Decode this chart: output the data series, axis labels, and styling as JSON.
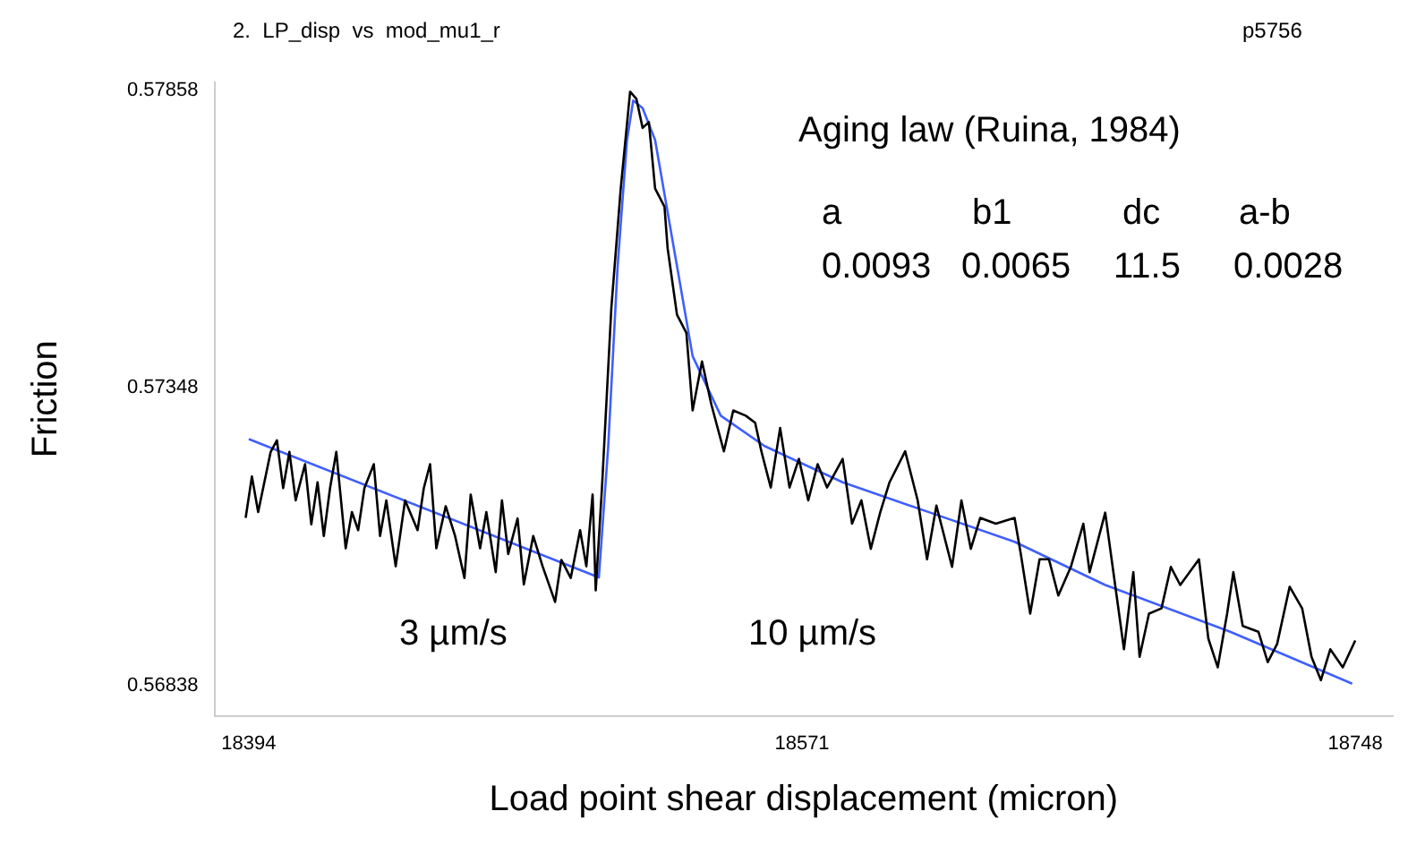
{
  "chart_data": {
    "type": "line",
    "title": "2.  LP_disp  vs  mod_mu1_r",
    "xlabel": "Load point shear displacement (micron)",
    "ylabel": "Friction",
    "annotations": [
      "p5756",
      "Aging law (Ruina, 1984)",
      "a",
      "b1",
      "dc",
      "a-b",
      "0.0093",
      "0.0065",
      "11.5",
      "0.0028",
      "3 µm/s",
      "10 µm/s"
    ],
    "xlim": [
      18383,
      18760
    ],
    "xticks": [
      18394,
      18571,
      18748
    ],
    "ylim": [
      0.56786,
      0.57871
    ],
    "yticks": [
      0.56838,
      0.57348,
      0.57858
    ],
    "grid": false,
    "legend": false,
    "marker": "none",
    "line_style": "solid",
    "series": [
      {
        "color": "#000000",
        "x": [
          18393,
          18395,
          18397,
          18401,
          18403,
          18405,
          18407,
          18409,
          18412,
          18414,
          18416,
          18418,
          18420,
          18422,
          18425,
          18427,
          18429,
          18431,
          18434,
          18436,
          18438,
          18441,
          18444,
          18448,
          18450,
          18452,
          18454,
          18457,
          18460,
          18463,
          18465,
          18468,
          18470,
          18473,
          18475,
          18477,
          18480,
          18482,
          18485,
          18488,
          18492,
          18494,
          18497,
          18500,
          18502,
          18504,
          18505,
          18507,
          18510,
          18513,
          18516,
          18518,
          18520,
          18522,
          18524,
          18527,
          18528,
          18531,
          18534,
          18536,
          18539,
          18542,
          18546,
          18549,
          18553,
          18556,
          18558,
          18561,
          18564,
          18567,
          18570,
          18573,
          18576,
          18579,
          18584,
          18587,
          18590,
          18593,
          18596,
          18599,
          18604,
          18608,
          18611,
          18614,
          18619,
          18622,
          18625,
          18628,
          18633,
          18639,
          18641,
          18644,
          18647,
          18650,
          18653,
          18657,
          18661,
          18663,
          18668,
          18674,
          18677,
          18679,
          18682,
          18686,
          18689,
          18692,
          18698,
          18701,
          18704,
          18707,
          18709,
          18712,
          18717,
          18720,
          18723,
          18727,
          18731,
          18734,
          18737,
          18740,
          18744,
          18748
        ],
        "values": [
          0.57125,
          0.57196,
          0.57135,
          0.57238,
          0.57258,
          0.57176,
          0.57238,
          0.57155,
          0.57217,
          0.57114,
          0.57186,
          0.57094,
          0.57176,
          0.57238,
          0.57073,
          0.57135,
          0.57104,
          0.57176,
          0.57217,
          0.57094,
          0.57155,
          0.57042,
          0.57155,
          0.57104,
          0.57176,
          0.57217,
          0.57073,
          0.57145,
          0.57094,
          0.57022,
          0.57165,
          0.57073,
          0.57135,
          0.57032,
          0.57155,
          0.57063,
          0.57124,
          0.57011,
          0.57094,
          0.57042,
          0.56981,
          0.57053,
          0.57022,
          0.57104,
          0.57042,
          0.57165,
          0.57001,
          0.57177,
          0.57485,
          0.57689,
          0.57855,
          0.57843,
          0.57793,
          0.57803,
          0.57689,
          0.57658,
          0.57587,
          0.57473,
          0.57442,
          0.57309,
          0.57393,
          0.57319,
          0.57239,
          0.57309,
          0.573,
          0.57288,
          0.57239,
          0.57177,
          0.57279,
          0.57177,
          0.57226,
          0.57155,
          0.57217,
          0.57177,
          0.57226,
          0.57115,
          0.57155,
          0.57072,
          0.57134,
          0.57186,
          0.57239,
          0.57155,
          0.57054,
          0.57146,
          0.57041,
          0.57155,
          0.57072,
          0.57125,
          0.57115,
          0.57125,
          0.57063,
          0.56961,
          0.57054,
          0.57054,
          0.56992,
          0.57041,
          0.57115,
          0.57032,
          0.57134,
          0.569,
          0.57032,
          0.56887,
          0.56961,
          0.5697,
          0.57041,
          0.5701,
          0.57054,
          0.56918,
          0.56869,
          0.56961,
          0.57032,
          0.5694,
          0.5693,
          0.56878,
          0.56909,
          0.57007,
          0.5697,
          0.56887,
          0.56847,
          0.569,
          0.56869,
          0.56915
        ]
      },
      {
        "color": "#3f5fff",
        "x": [
          18394,
          18506,
          18509,
          18512,
          18515,
          18517,
          18520,
          18524,
          18530,
          18536,
          18545,
          18559,
          18584,
          18612,
          18639,
          18668,
          18708,
          18747
        ],
        "values": [
          0.5726,
          0.57023,
          0.57248,
          0.57556,
          0.57772,
          0.5784,
          0.57827,
          0.57772,
          0.57587,
          0.57402,
          0.573,
          0.57248,
          0.57186,
          0.57134,
          0.57084,
          0.5701,
          0.5693,
          0.56841
        ]
      }
    ]
  }
}
